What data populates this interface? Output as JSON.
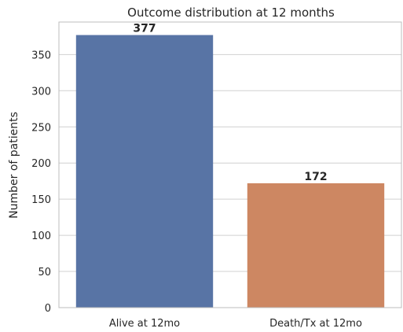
{
  "chart_data": {
    "type": "bar",
    "title": "Outcome distribution at 12 months",
    "xlabel": "",
    "ylabel": "Number of patients",
    "categories": [
      "Alive at 12mo",
      "Death/Tx at 12mo"
    ],
    "values": [
      377,
      172
    ],
    "data_labels": [
      "377",
      "172"
    ],
    "colors": [
      "#5874a5",
      "#cd8762"
    ],
    "ylim": [
      0,
      395
    ],
    "yticks": [
      0,
      50,
      100,
      150,
      200,
      250,
      300,
      350
    ],
    "grid": "horizontal",
    "legend": "none"
  }
}
